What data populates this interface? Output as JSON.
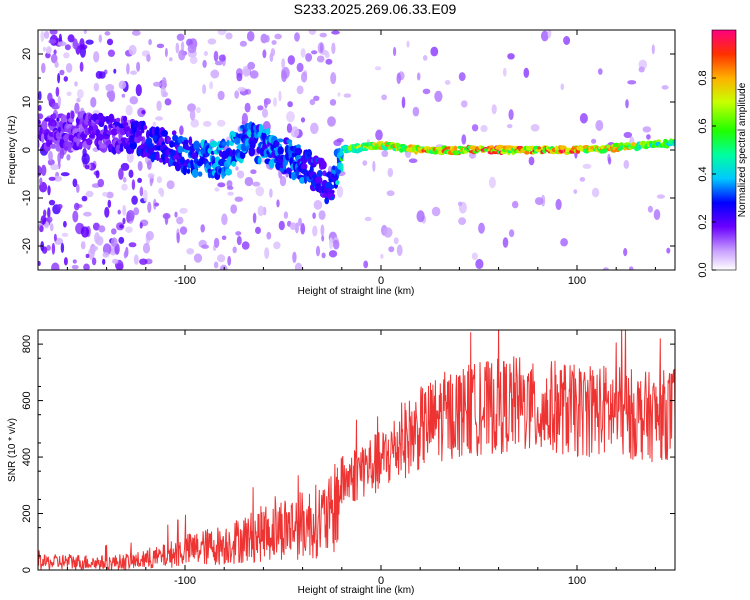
{
  "title": "S233.2025.269.06.33.E09",
  "chart_data": [
    {
      "type": "heatmap",
      "xlabel": "Height of straight line (km)",
      "ylabel": "Frequency (Hz)",
      "xlim": [
        -175,
        150
      ],
      "ylim": [
        -25,
        25
      ],
      "xticks": [
        -100,
        0,
        100
      ],
      "yticks": [
        -20,
        -10,
        0,
        10,
        20
      ],
      "colorbar": {
        "label": "Normalized spectral amplitude",
        "range": [
          0,
          1
        ],
        "ticks": [
          "0.0",
          "0.2",
          "0.4",
          "0.6",
          "0.8"
        ]
      },
      "ridge": {
        "description_points_x": [
          -175,
          -150,
          -130,
          -120,
          -110,
          -100,
          -90,
          -80,
          -70,
          -60,
          -50,
          -40,
          -30,
          -25,
          -20,
          -10,
          0,
          20,
          50,
          80,
          100,
          120,
          150
        ],
        "frequency_hz": [
          4,
          4,
          3,
          2,
          1,
          -1,
          -2,
          -2,
          2,
          1,
          -1,
          -3,
          -6,
          -9,
          0,
          0.5,
          1,
          0,
          0,
          0,
          0,
          0.5,
          1.5
        ],
        "amplitude": [
          0.2,
          0.2,
          0.25,
          0.3,
          0.3,
          0.35,
          0.4,
          0.4,
          0.4,
          0.4,
          0.35,
          0.35,
          0.3,
          0.3,
          0.6,
          0.7,
          0.8,
          0.9,
          0.95,
          0.95,
          0.9,
          0.85,
          0.6
        ]
      },
      "grid": false
    },
    {
      "type": "line",
      "xlabel": "Height of straight line (km)",
      "ylabel": "SNR (10 * v/v)",
      "xlim": [
        -175,
        150
      ],
      "ylim": [
        0,
        850
      ],
      "xticks": [
        -100,
        0,
        100
      ],
      "yticks": [
        0,
        200,
        400,
        600,
        800
      ],
      "color": "#ee3333",
      "series": [
        {
          "x": [
            -175,
            -160,
            -140,
            -120,
            -110,
            -100,
            -90,
            -80,
            -70,
            -60,
            -50,
            -40,
            -30,
            -25,
            -20,
            -15,
            -10,
            -5,
            0,
            10,
            20,
            30,
            40,
            50,
            60,
            70,
            80,
            90,
            100,
            110,
            120,
            130,
            140,
            150
          ],
          "y": [
            25,
            30,
            25,
            35,
            50,
            70,
            80,
            90,
            110,
            130,
            150,
            160,
            180,
            190,
            310,
            330,
            360,
            370,
            380,
            450,
            500,
            540,
            560,
            570,
            580,
            590,
            560,
            580,
            560,
            570,
            560,
            550,
            540,
            560
          ]
        }
      ],
      "grid": false
    }
  ]
}
